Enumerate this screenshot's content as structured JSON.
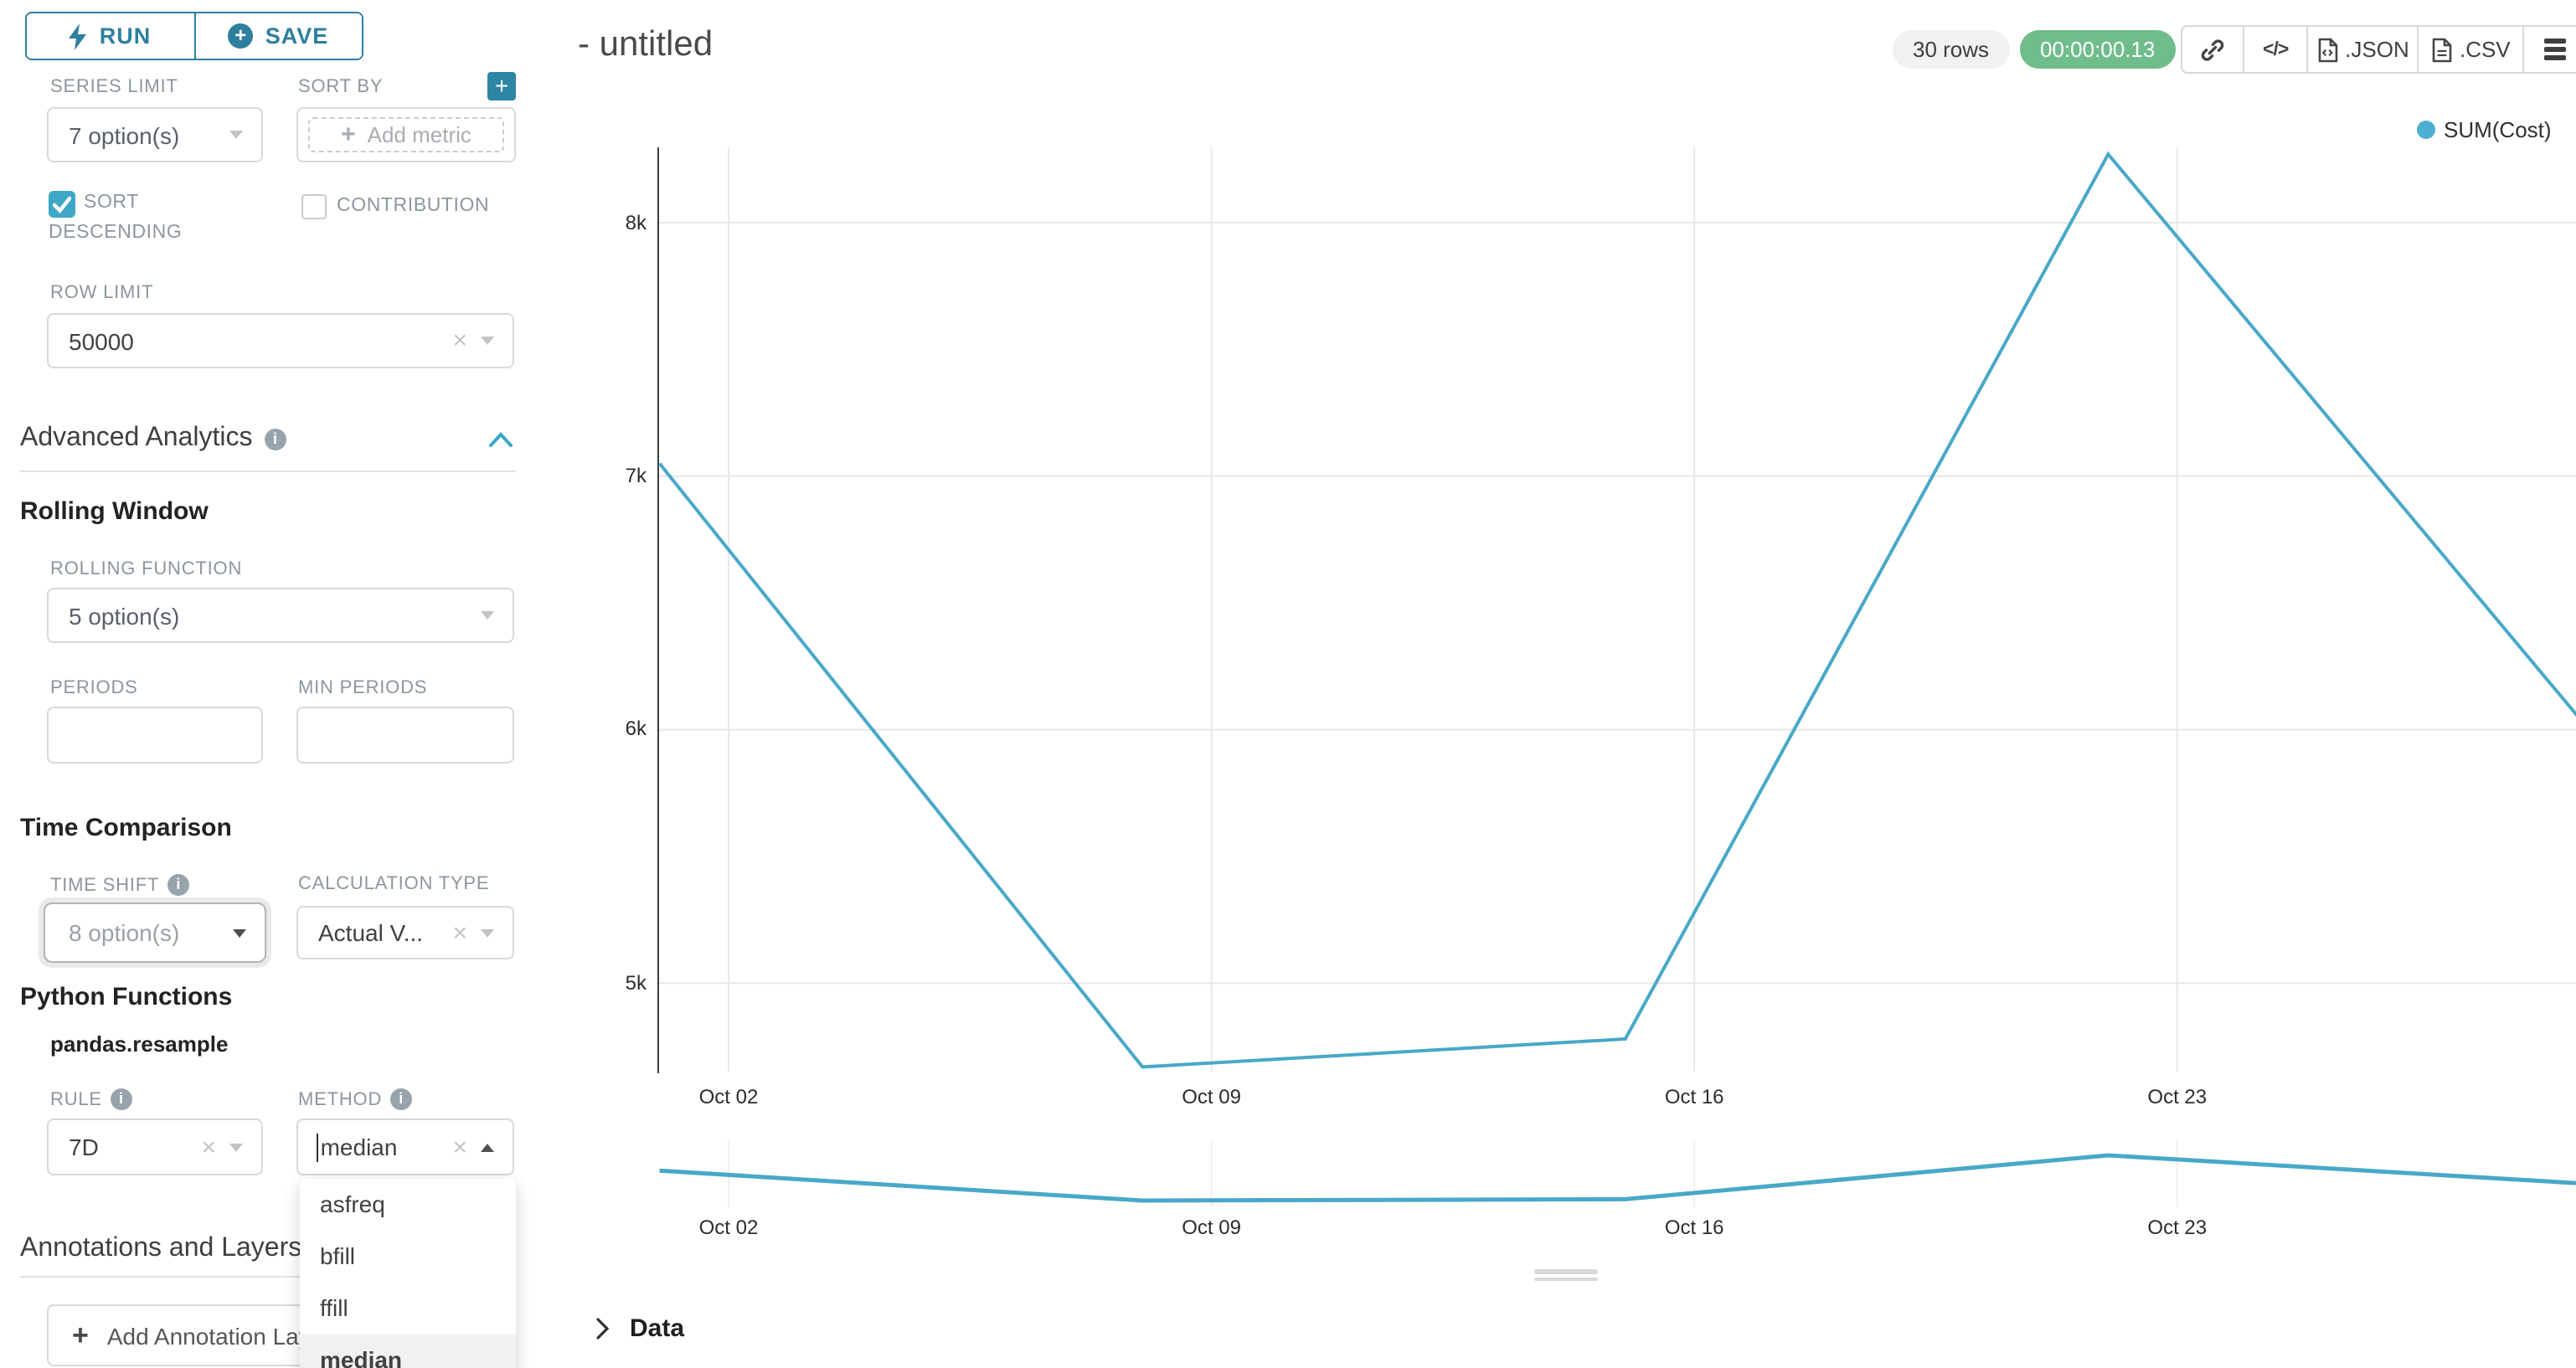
{
  "left_panel": {
    "run_label": "RUN",
    "save_label": "SAVE",
    "series_limit_label": "SERIES LIMIT",
    "series_limit_value": "7 option(s)",
    "sort_by_label": "SORT BY",
    "sort_by_placeholder": "Add metric",
    "sort_descending_lines": [
      "SORT",
      "DESCENDING"
    ],
    "sort_descending_checked": true,
    "contribution_label": "CONTRIBUTION",
    "contribution_checked": false,
    "row_limit_label": "ROW LIMIT",
    "row_limit_value": "50000",
    "advanced_analytics_title": "Advanced Analytics",
    "rolling_window_title": "Rolling Window",
    "rolling_function_label": "ROLLING FUNCTION",
    "rolling_function_value": "5 option(s)",
    "periods_label": "PERIODS",
    "min_periods_label": "MIN PERIODS",
    "time_comparison_title": "Time Comparison",
    "time_shift_label": "TIME SHIFT",
    "time_shift_value": "8 option(s)",
    "calculation_type_label": "CALCULATION TYPE",
    "calculation_type_value": "Actual V...",
    "python_functions_title": "Python Functions",
    "python_functions_subtitle": "pandas.resample",
    "rule_label": "RULE",
    "rule_value": "7D",
    "method_label": "METHOD",
    "method_value": "median",
    "method_options": [
      "asfreq",
      "bfill",
      "ffill",
      "median"
    ],
    "method_selected": "median",
    "annotations_title": "Annotations and Layers",
    "add_annotation_label": "Add Annotation Layer"
  },
  "header": {
    "title": "- untitled",
    "rows_badge": "30 rows",
    "timer": "00:00:00.13",
    "json_label": ".JSON",
    "csv_label": ".CSV"
  },
  "data_panel": {
    "title": "Data"
  },
  "colors": {
    "primary_teal": "#2d7f9d",
    "checkbox_teal": "#3fa7c6",
    "timer_green": "#6fbd8b",
    "line_blue": "#48a8c8"
  },
  "chart_data": {
    "type": "line",
    "title": "",
    "legend_position": "top-right",
    "grid": true,
    "series": [
      {
        "name": "SUM(Cost)",
        "color": "#48a8c8",
        "points": [
          {
            "date": "Oct 01",
            "day": 1,
            "value": 7050
          },
          {
            "date": "Oct 08",
            "day": 8,
            "value": 4670
          },
          {
            "date": "Oct 15",
            "day": 15,
            "value": 4780
          },
          {
            "date": "Oct 22",
            "day": 22,
            "value": 8270
          },
          {
            "date": "Oct 29",
            "day": 29,
            "value": 5990
          }
        ]
      }
    ],
    "x_ticks": [
      {
        "label": "Oct 02",
        "day": 2
      },
      {
        "label": "Oct 09",
        "day": 9
      },
      {
        "label": "Oct 16",
        "day": 16
      },
      {
        "label": "Oct 23",
        "day": 23
      }
    ],
    "y_ticks": [
      {
        "label": "8k",
        "value": 8000
      },
      {
        "label": "7k",
        "value": 7000
      },
      {
        "label": "6k",
        "value": 6000
      },
      {
        "label": "5k",
        "value": 5000
      }
    ],
    "ylim_main": [
      4600,
      8350
    ],
    "has_preview_strip": true
  }
}
